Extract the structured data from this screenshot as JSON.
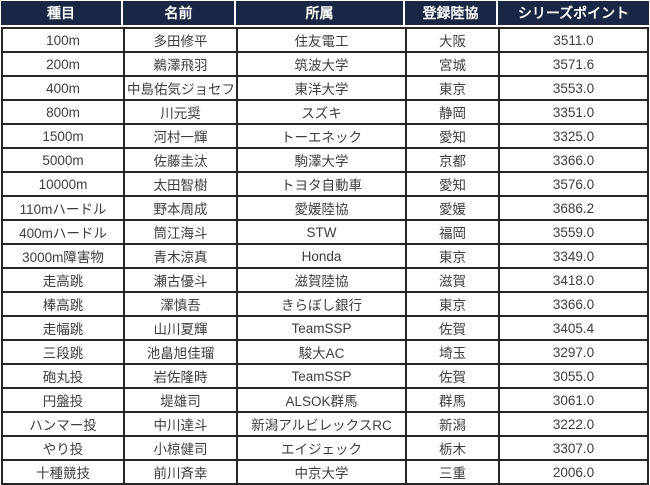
{
  "colors": {
    "header_bg": "#1a2744",
    "header_text": "#ffffff",
    "body_text": "#3d3d3d",
    "border": "#262626"
  },
  "table": {
    "headers": [
      "種目",
      "名前",
      "所属",
      "登録陸協",
      "シリーズポイント"
    ],
    "rows": [
      {
        "event": "100m",
        "name": "多田修平",
        "team": "住友電工",
        "federation": "大阪",
        "points": "3511.0"
      },
      {
        "event": "200m",
        "name": "鵜澤飛羽",
        "team": "筑波大学",
        "federation": "宮城",
        "points": "3571.6"
      },
      {
        "event": "400m",
        "name": "中島佑気ジョセフ",
        "team": "東洋大学",
        "federation": "東京",
        "points": "3553.0"
      },
      {
        "event": "800m",
        "name": "川元奨",
        "team": "スズキ",
        "federation": "静岡",
        "points": "3351.0"
      },
      {
        "event": "1500m",
        "name": "河村一輝",
        "team": "トーエネック",
        "federation": "愛知",
        "points": "3325.0"
      },
      {
        "event": "5000m",
        "name": "佐藤圭汰",
        "team": "駒澤大学",
        "federation": "京都",
        "points": "3366.0"
      },
      {
        "event": "10000m",
        "name": "太田智樹",
        "team": "トヨタ自動車",
        "federation": "愛知",
        "points": "3576.0"
      },
      {
        "event": "110mハードル",
        "name": "野本周成",
        "team": "愛媛陸協",
        "federation": "愛媛",
        "points": "3686.2"
      },
      {
        "event": "400mハードル",
        "name": "筒江海斗",
        "team": "STW",
        "federation": "福岡",
        "points": "3559.0"
      },
      {
        "event": "3000m障害物",
        "name": "青木涼真",
        "team": "Honda",
        "federation": "東京",
        "points": "3349.0"
      },
      {
        "event": "走高跳",
        "name": "瀬古優斗",
        "team": "滋賀陸協",
        "federation": "滋賀",
        "points": "3418.0"
      },
      {
        "event": "棒高跳",
        "name": "澤慎吾",
        "team": "きらぼし銀行",
        "federation": "東京",
        "points": "3366.0"
      },
      {
        "event": "走幅跳",
        "name": "山川夏輝",
        "team": "TeamSSP",
        "federation": "佐賀",
        "points": "3405.4"
      },
      {
        "event": "三段跳",
        "name": "池畠旭佳瑠",
        "team": "駿大AC",
        "federation": "埼玉",
        "points": "3297.0"
      },
      {
        "event": "砲丸投",
        "name": "岩佐隆時",
        "team": "TeamSSP",
        "federation": "佐賀",
        "points": "3055.0"
      },
      {
        "event": "円盤投",
        "name": "堤雄司",
        "team": "ALSOK群馬",
        "federation": "群馬",
        "points": "3061.0"
      },
      {
        "event": "ハンマー投",
        "name": "中川達斗",
        "team": "新潟アルビレックスRC",
        "federation": "新潟",
        "points": "3222.0"
      },
      {
        "event": "やり投",
        "name": "小椋健司",
        "team": "エイジェック",
        "federation": "栃木",
        "points": "3307.0"
      },
      {
        "event": "十種競技",
        "name": "前川斉幸",
        "team": "中京大学",
        "federation": "三重",
        "points": "2006.0"
      }
    ]
  },
  "chart_data": {
    "type": "table",
    "title": "",
    "columns": [
      "種目",
      "名前",
      "所属",
      "登録陸協",
      "シリーズポイント"
    ],
    "rows": [
      [
        "100m",
        "多田修平",
        "住友電工",
        "大阪",
        3511.0
      ],
      [
        "200m",
        "鵜澤飛羽",
        "筑波大学",
        "宮城",
        3571.6
      ],
      [
        "400m",
        "中島佑気ジョセフ",
        "東洋大学",
        "東京",
        3553.0
      ],
      [
        "800m",
        "川元奨",
        "スズキ",
        "静岡",
        3351.0
      ],
      [
        "1500m",
        "河村一輝",
        "トーエネック",
        "愛知",
        3325.0
      ],
      [
        "5000m",
        "佐藤圭汰",
        "駒澤大学",
        "京都",
        3366.0
      ],
      [
        "10000m",
        "太田智樹",
        "トヨタ自動車",
        "愛知",
        3576.0
      ],
      [
        "110mハードル",
        "野本周成",
        "愛媛陸協",
        "愛媛",
        3686.2
      ],
      [
        "400mハードル",
        "筒江海斗",
        "STW",
        "福岡",
        3559.0
      ],
      [
        "3000m障害物",
        "青木涼真",
        "Honda",
        "東京",
        3349.0
      ],
      [
        "走高跳",
        "瀬古優斗",
        "滋賀陸協",
        "滋賀",
        3418.0
      ],
      [
        "棒高跳",
        "澤慎吾",
        "きらぼし銀行",
        "東京",
        3366.0
      ],
      [
        "走幅跳",
        "山川夏輝",
        "TeamSSP",
        "佐賀",
        3405.4
      ],
      [
        "三段跳",
        "池畠旭佳瑠",
        "駿大AC",
        "埼玉",
        3297.0
      ],
      [
        "砲丸投",
        "岩佐隆時",
        "TeamSSP",
        "佐賀",
        3055.0
      ],
      [
        "円盤投",
        "堤雄司",
        "ALSOK群馬",
        "群馬",
        3061.0
      ],
      [
        "ハンマー投",
        "中川達斗",
        "新潟アルビレックスRC",
        "新潟",
        3222.0
      ],
      [
        "やり投",
        "小椋健司",
        "エイジェック",
        "栃木",
        3307.0
      ],
      [
        "十種競技",
        "前川斉幸",
        "中京大学",
        "三重",
        2006.0
      ]
    ]
  }
}
